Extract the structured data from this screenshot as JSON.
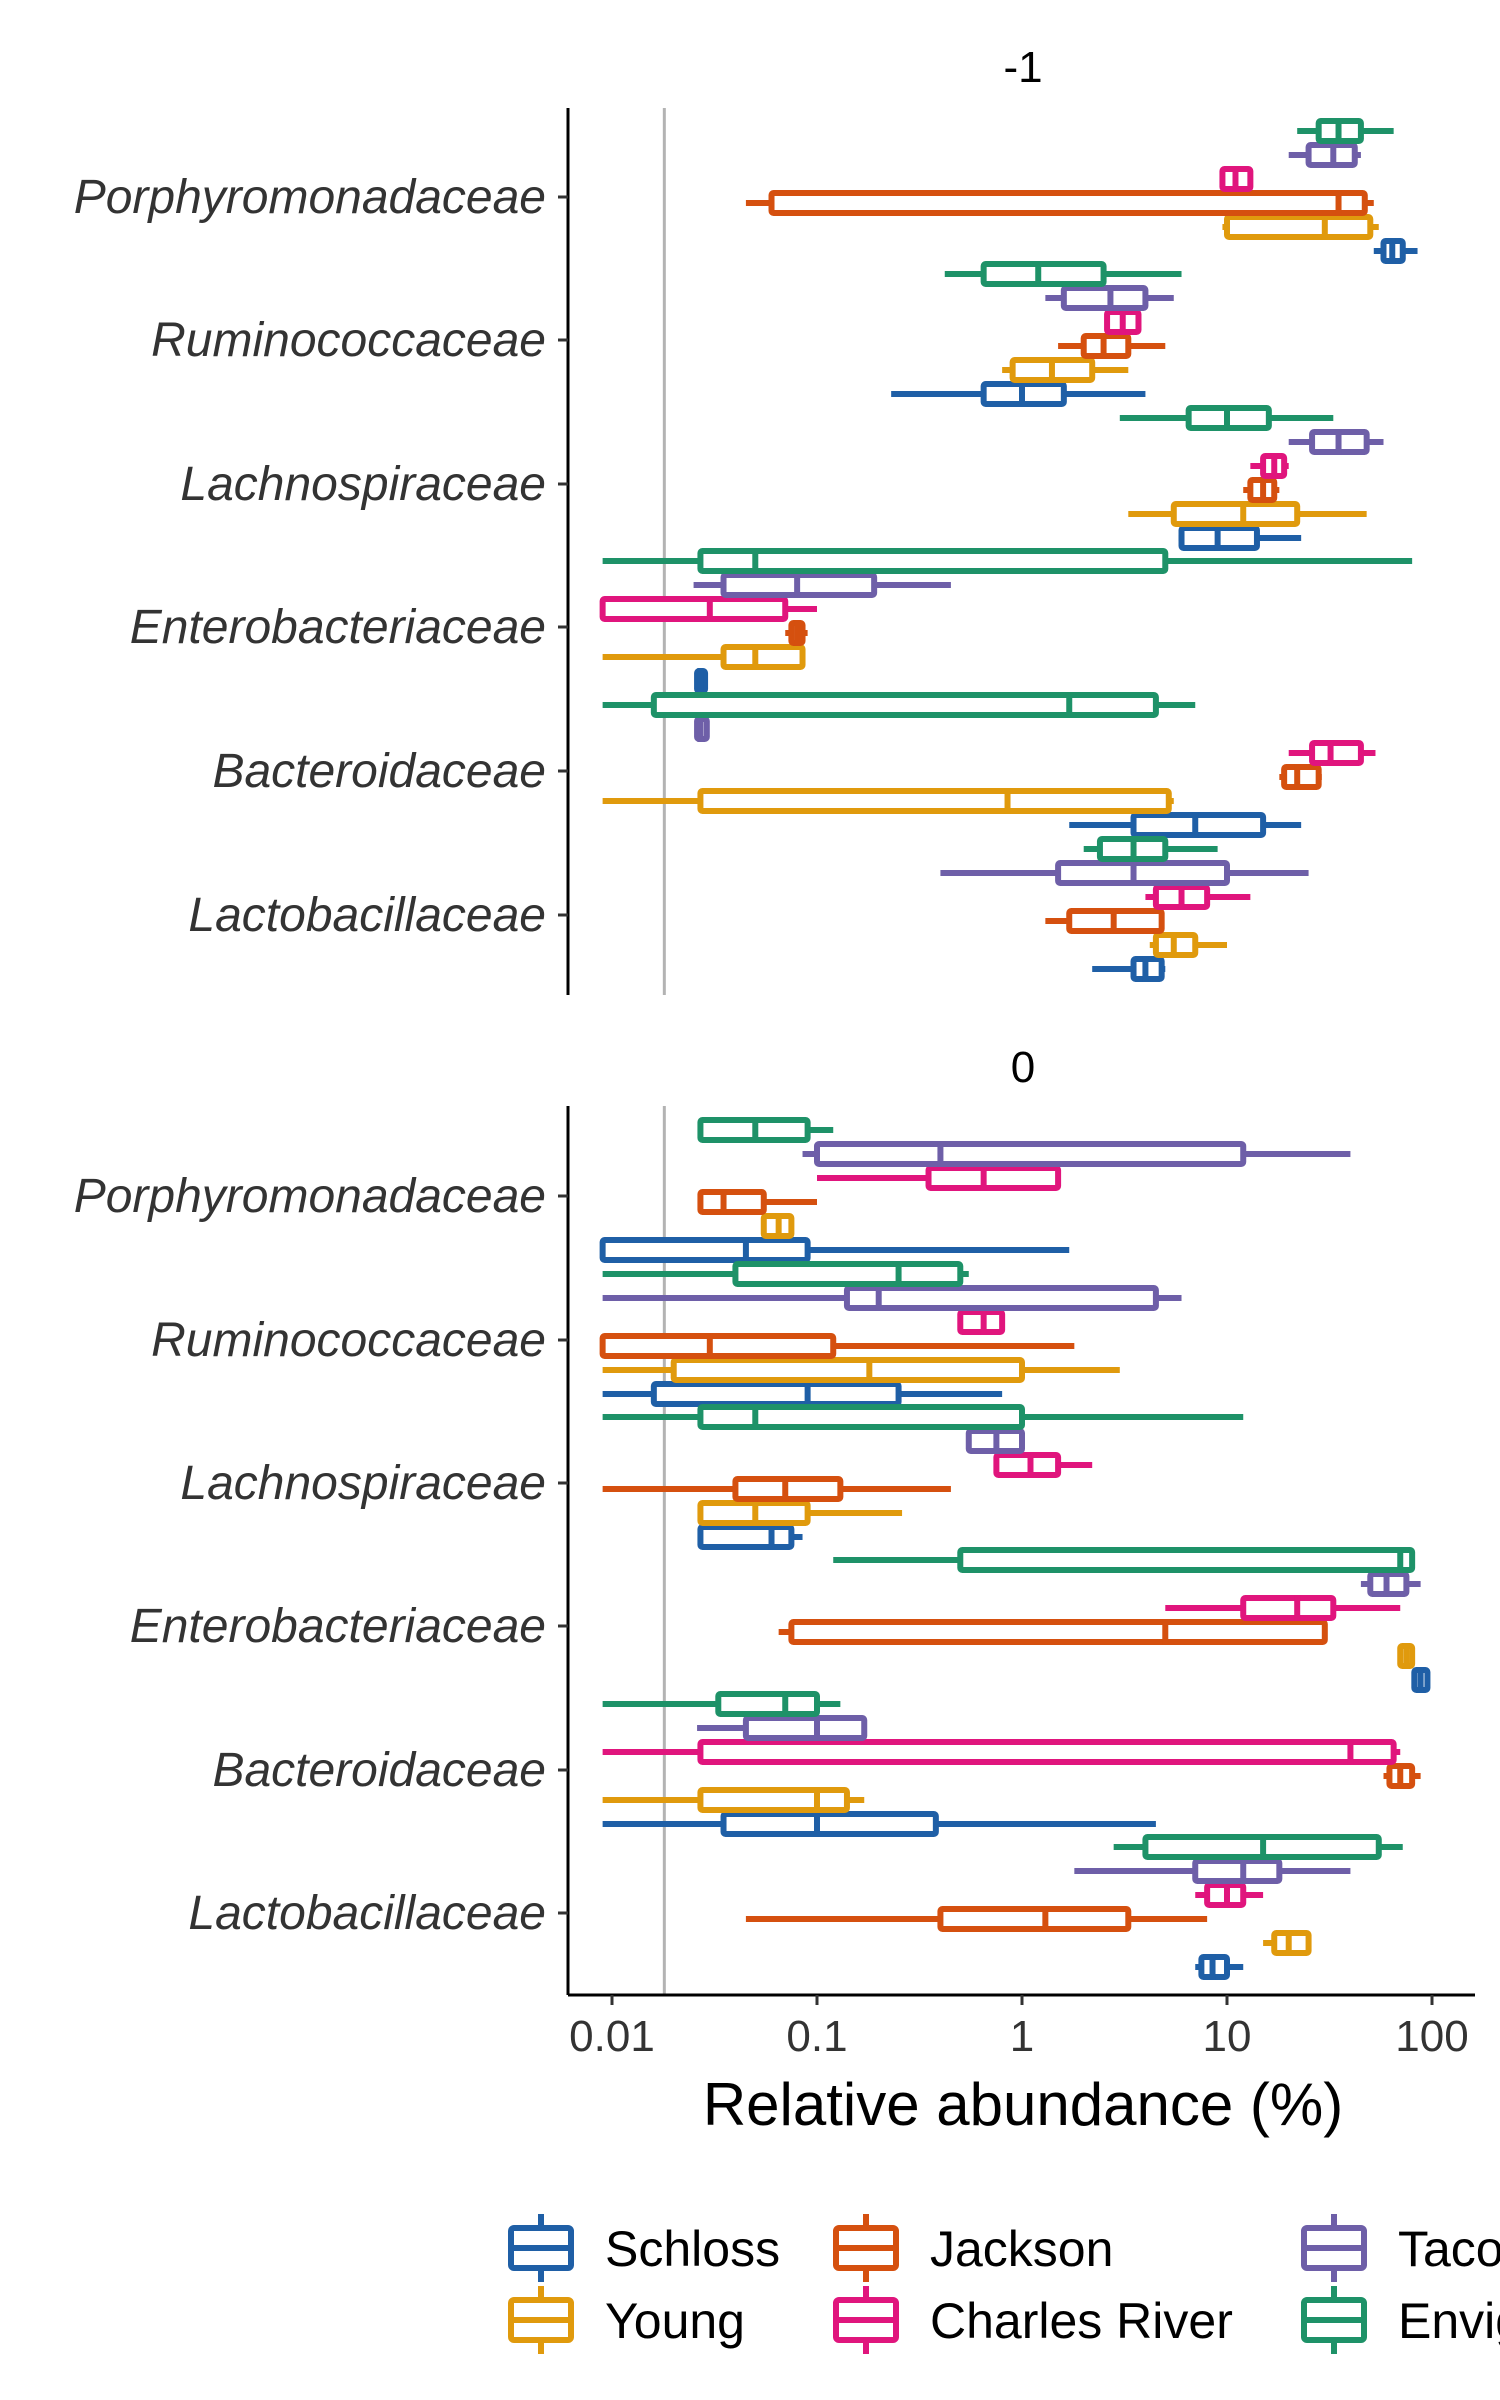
{
  "chart_data": {
    "type": "boxplot",
    "xlabel": "Relative abundance (%)",
    "x_scale": "log10",
    "xlim": [
      0.006,
      150
    ],
    "x_ticks": [
      {
        "value": 0.01,
        "label": "0.01"
      },
      {
        "value": 0.1,
        "label": "0.1"
      },
      {
        "value": 1,
        "label": "1"
      },
      {
        "value": 10,
        "label": "10"
      },
      {
        "value": 100,
        "label": "100"
      }
    ],
    "reference_line": 0.018,
    "categories": [
      "Porphyromonadaceae",
      "Ruminococcaceae",
      "Lachnospiraceae",
      "Enterobacteriaceae",
      "Bacteroidaceae",
      "Lactobacillaceae"
    ],
    "series": [
      {
        "name": "Schloss",
        "color": "#1f5fa6"
      },
      {
        "name": "Young",
        "color": "#e09a0d"
      },
      {
        "name": "Jackson",
        "color": "#d5500f"
      },
      {
        "name": "Charles River",
        "color": "#e0157d"
      },
      {
        "name": "Taconic",
        "color": "#6e5fa8"
      },
      {
        "name": "Envigo",
        "color": "#1e9268"
      }
    ],
    "legend": {
      "position": "bottom",
      "labels": [
        "Schloss",
        "Jackson",
        "Taco",
        "Young",
        "Charles River",
        "Envig"
      ]
    },
    "panels": [
      {
        "title": "-1",
        "boxes": [
          {
            "category": "Porphyromonadaceae",
            "series": "Schloss",
            "whisker_low": 52,
            "q1": 58,
            "median": 64,
            "q3": 72,
            "whisker_high": 85
          },
          {
            "category": "Porphyromonadaceae",
            "series": "Young",
            "whisker_low": 9.5,
            "q1": 10,
            "median": 30,
            "q3": 50,
            "whisker_high": 55
          },
          {
            "category": "Porphyromonadaceae",
            "series": "Jackson",
            "whisker_low": 0.045,
            "q1": 0.06,
            "median": 35,
            "q3": 47,
            "whisker_high": 52
          },
          {
            "category": "Porphyromonadaceae",
            "series": "Charles River",
            "whisker_low": 9.5,
            "q1": 9.5,
            "median": 11,
            "q3": 13,
            "whisker_high": 13
          },
          {
            "category": "Porphyromonadaceae",
            "series": "Taconic",
            "whisker_low": 20,
            "q1": 25,
            "median": 33,
            "q3": 42,
            "whisker_high": 45
          },
          {
            "category": "Porphyromonadaceae",
            "series": "Envigo",
            "whisker_low": 22,
            "q1": 28,
            "median": 35,
            "q3": 45,
            "whisker_high": 65
          },
          {
            "category": "Ruminococcaceae",
            "series": "Schloss",
            "whisker_low": 0.23,
            "q1": 0.65,
            "median": 1.0,
            "q3": 1.6,
            "whisker_high": 4.0
          },
          {
            "category": "Ruminococcaceae",
            "series": "Young",
            "whisker_low": 0.8,
            "q1": 0.9,
            "median": 1.4,
            "q3": 2.2,
            "whisker_high": 3.3
          },
          {
            "category": "Ruminococcaceae",
            "series": "Jackson",
            "whisker_low": 1.5,
            "q1": 2.0,
            "median": 2.5,
            "q3": 3.3,
            "whisker_high": 5.0
          },
          {
            "category": "Ruminococcaceae",
            "series": "Charles River",
            "whisker_low": 2.6,
            "q1": 2.6,
            "median": 3.1,
            "q3": 3.7,
            "whisker_high": 3.7
          },
          {
            "category": "Ruminococcaceae",
            "series": "Taconic",
            "whisker_low": 1.3,
            "q1": 1.6,
            "median": 2.7,
            "q3": 4.0,
            "whisker_high": 5.5
          },
          {
            "category": "Ruminococcaceae",
            "series": "Envigo",
            "whisker_low": 0.42,
            "q1": 0.65,
            "median": 1.2,
            "q3": 2.5,
            "whisker_high": 6.0
          },
          {
            "category": "Lachnospiraceae",
            "series": "Schloss",
            "whisker_low": 5.8,
            "q1": 6.0,
            "median": 9.0,
            "q3": 14,
            "whisker_high": 23
          },
          {
            "category": "Lachnospiraceae",
            "series": "Young",
            "whisker_low": 3.3,
            "q1": 5.5,
            "median": 12,
            "q3": 22,
            "whisker_high": 48
          },
          {
            "category": "Lachnospiraceae",
            "series": "Jackson",
            "whisker_low": 12,
            "q1": 13,
            "median": 15,
            "q3": 17,
            "whisker_high": 18
          },
          {
            "category": "Lachnospiraceae",
            "series": "Charles River",
            "whisker_low": 13,
            "q1": 15,
            "median": 17,
            "q3": 19,
            "whisker_high": 20
          },
          {
            "category": "Lachnospiraceae",
            "series": "Taconic",
            "whisker_low": 20,
            "q1": 26,
            "median": 35,
            "q3": 48,
            "whisker_high": 58
          },
          {
            "category": "Lachnospiraceae",
            "series": "Envigo",
            "whisker_low": 3.0,
            "q1": 6.5,
            "median": 10,
            "q3": 16,
            "whisker_high": 33
          },
          {
            "category": "Enterobacteriaceae",
            "series": "Schloss",
            "whisker_low": 0.026,
            "q1": 0.026,
            "median": 0.027,
            "q3": 0.028,
            "whisker_high": 0.028
          },
          {
            "category": "Enterobacteriaceae",
            "series": "Young",
            "whisker_low": 0.009,
            "q1": 0.035,
            "median": 0.05,
            "q3": 0.085,
            "whisker_high": 0.085
          },
          {
            "category": "Enterobacteriaceae",
            "series": "Jackson",
            "whisker_low": 0.07,
            "q1": 0.075,
            "median": 0.08,
            "q3": 0.085,
            "whisker_high": 0.09
          },
          {
            "category": "Enterobacteriaceae",
            "series": "Charles River",
            "whisker_low": 0.009,
            "q1": 0.009,
            "median": 0.03,
            "q3": 0.07,
            "whisker_high": 0.1
          },
          {
            "category": "Enterobacteriaceae",
            "series": "Taconic",
            "whisker_low": 0.025,
            "q1": 0.035,
            "median": 0.08,
            "q3": 0.19,
            "whisker_high": 0.45
          },
          {
            "category": "Enterobacteriaceae",
            "series": "Envigo",
            "whisker_low": 0.009,
            "q1": 0.027,
            "median": 0.05,
            "q3": 5.0,
            "whisker_high": 80
          },
          {
            "category": "Bacteroidaceae",
            "series": "Schloss",
            "whisker_low": 1.7,
            "q1": 3.5,
            "median": 7.0,
            "q3": 15,
            "whisker_high": 23
          },
          {
            "category": "Bacteroidaceae",
            "series": "Young",
            "whisker_low": 0.009,
            "q1": 0.027,
            "median": 0.85,
            "q3": 5.2,
            "whisker_high": 5.5
          },
          {
            "category": "Bacteroidaceae",
            "series": "Jackson",
            "whisker_low": 18,
            "q1": 19,
            "median": 22,
            "q3": 28,
            "whisker_high": 29
          },
          {
            "category": "Bacteroidaceae",
            "series": "Charles River",
            "whisker_low": 20,
            "q1": 26,
            "median": 32,
            "q3": 45,
            "whisker_high": 53
          },
          {
            "category": "Bacteroidaceae",
            "series": "Taconic",
            "whisker_low": 0.026,
            "q1": 0.026,
            "median": 0.027,
            "q3": 0.029,
            "whisker_high": 0.029
          },
          {
            "category": "Bacteroidaceae",
            "series": "Envigo",
            "whisker_low": 0.009,
            "q1": 0.016,
            "median": 1.7,
            "q3": 4.5,
            "whisker_high": 7.0
          },
          {
            "category": "Lactobacillaceae",
            "series": "Schloss",
            "whisker_low": 2.2,
            "q1": 3.5,
            "median": 4.0,
            "q3": 4.8,
            "whisker_high": 5.0
          },
          {
            "category": "Lactobacillaceae",
            "series": "Young",
            "whisker_low": 4.2,
            "q1": 4.5,
            "median": 5.5,
            "q3": 7.0,
            "whisker_high": 10
          },
          {
            "category": "Lactobacillaceae",
            "series": "Jackson",
            "whisker_low": 1.3,
            "q1": 1.7,
            "median": 2.8,
            "q3": 4.8,
            "whisker_high": 4.8
          },
          {
            "category": "Lactobacillaceae",
            "series": "Charles River",
            "whisker_low": 4.0,
            "q1": 4.5,
            "median": 6.0,
            "q3": 8.0,
            "whisker_high": 13
          },
          {
            "category": "Lactobacillaceae",
            "series": "Taconic",
            "whisker_low": 0.4,
            "q1": 1.5,
            "median": 3.5,
            "q3": 10,
            "whisker_high": 25
          },
          {
            "category": "Lactobacillaceae",
            "series": "Envigo",
            "whisker_low": 2.0,
            "q1": 2.4,
            "median": 3.5,
            "q3": 5.0,
            "whisker_high": 9.0
          }
        ]
      },
      {
        "title": "0",
        "boxes": [
          {
            "category": "Porphyromonadaceae",
            "series": "Schloss",
            "whisker_low": 0.009,
            "q1": 0.009,
            "median": 0.045,
            "q3": 0.09,
            "whisker_high": 1.7
          },
          {
            "category": "Porphyromonadaceae",
            "series": "Young",
            "whisker_low": 0.055,
            "q1": 0.055,
            "median": 0.065,
            "q3": 0.075,
            "whisker_high": 0.075
          },
          {
            "category": "Porphyromonadaceae",
            "series": "Jackson",
            "whisker_low": 0.027,
            "q1": 0.027,
            "median": 0.035,
            "q3": 0.055,
            "whisker_high": 0.1
          },
          {
            "category": "Porphyromonadaceae",
            "series": "Charles River",
            "whisker_low": 0.1,
            "q1": 0.35,
            "median": 0.65,
            "q3": 1.5,
            "whisker_high": 1.5
          },
          {
            "category": "Porphyromonadaceae",
            "series": "Taconic",
            "whisker_low": 0.085,
            "q1": 0.1,
            "median": 0.4,
            "q3": 12,
            "whisker_high": 40
          },
          {
            "category": "Porphyromonadaceae",
            "series": "Envigo",
            "whisker_low": 0.027,
            "q1": 0.027,
            "median": 0.05,
            "q3": 0.09,
            "whisker_high": 0.12
          },
          {
            "category": "Ruminococcaceae",
            "series": "Schloss",
            "whisker_low": 0.009,
            "q1": 0.016,
            "median": 0.09,
            "q3": 0.25,
            "whisker_high": 0.8
          },
          {
            "category": "Ruminococcaceae",
            "series": "Young",
            "whisker_low": 0.009,
            "q1": 0.02,
            "median": 0.18,
            "q3": 1.0,
            "whisker_high": 3.0
          },
          {
            "category": "Ruminococcaceae",
            "series": "Jackson",
            "whisker_low": 0.009,
            "q1": 0.009,
            "median": 0.03,
            "q3": 0.12,
            "whisker_high": 1.8
          },
          {
            "category": "Ruminococcaceae",
            "series": "Charles River",
            "whisker_low": 0.5,
            "q1": 0.5,
            "median": 0.65,
            "q3": 0.8,
            "whisker_high": 0.8
          },
          {
            "category": "Ruminococcaceae",
            "series": "Taconic",
            "whisker_low": 0.009,
            "q1": 0.14,
            "median": 0.2,
            "q3": 4.5,
            "whisker_high": 6.0
          },
          {
            "category": "Ruminococcaceae",
            "series": "Envigo",
            "whisker_low": 0.009,
            "q1": 0.04,
            "median": 0.25,
            "q3": 0.5,
            "whisker_high": 0.55
          },
          {
            "category": "Lachnospiraceae",
            "series": "Schloss",
            "whisker_low": 0.027,
            "q1": 0.027,
            "median": 0.06,
            "q3": 0.075,
            "whisker_high": 0.085
          },
          {
            "category": "Lachnospiraceae",
            "series": "Young",
            "whisker_low": 0.027,
            "q1": 0.027,
            "median": 0.05,
            "q3": 0.09,
            "whisker_high": 0.26
          },
          {
            "category": "Lachnospiraceae",
            "series": "Jackson",
            "whisker_low": 0.009,
            "q1": 0.04,
            "median": 0.07,
            "q3": 0.13,
            "whisker_high": 0.45
          },
          {
            "category": "Lachnospiraceae",
            "series": "Charles River",
            "whisker_low": 0.75,
            "q1": 0.75,
            "median": 1.1,
            "q3": 1.5,
            "whisker_high": 2.2
          },
          {
            "category": "Lachnospiraceae",
            "series": "Taconic",
            "whisker_low": 0.55,
            "q1": 0.55,
            "median": 0.75,
            "q3": 1.0,
            "whisker_high": 1.0
          },
          {
            "category": "Lachnospiraceae",
            "series": "Envigo",
            "whisker_low": 0.009,
            "q1": 0.027,
            "median": 0.05,
            "q3": 1.0,
            "whisker_high": 12
          },
          {
            "category": "Enterobacteriaceae",
            "series": "Schloss",
            "whisker_low": 80,
            "q1": 82,
            "median": 88,
            "q3": 95,
            "whisker_high": 97
          },
          {
            "category": "Enterobacteriaceae",
            "series": "Young",
            "whisker_low": 70,
            "q1": 70,
            "median": 75,
            "q3": 80,
            "whisker_high": 80
          },
          {
            "category": "Enterobacteriaceae",
            "series": "Jackson",
            "whisker_low": 0.065,
            "q1": 0.075,
            "median": 5.0,
            "q3": 30,
            "whisker_high": 30
          },
          {
            "category": "Enterobacteriaceae",
            "series": "Charles River",
            "whisker_low": 5.0,
            "q1": 12,
            "median": 22,
            "q3": 33,
            "whisker_high": 70
          },
          {
            "category": "Enterobacteriaceae",
            "series": "Taconic",
            "whisker_low": 45,
            "q1": 50,
            "median": 60,
            "q3": 75,
            "whisker_high": 88
          },
          {
            "category": "Enterobacteriaceae",
            "series": "Envigo",
            "whisker_low": 0.12,
            "q1": 0.5,
            "median": 70,
            "q3": 80,
            "whisker_high": 82
          },
          {
            "category": "Bacteroidaceae",
            "series": "Schloss",
            "whisker_low": 0.009,
            "q1": 0.035,
            "median": 0.1,
            "q3": 0.38,
            "whisker_high": 4.5
          },
          {
            "category": "Bacteroidaceae",
            "series": "Young",
            "whisker_low": 0.009,
            "q1": 0.027,
            "median": 0.1,
            "q3": 0.14,
            "whisker_high": 0.17
          },
          {
            "category": "Bacteroidaceae",
            "series": "Jackson",
            "whisker_low": 58,
            "q1": 62,
            "median": 70,
            "q3": 80,
            "whisker_high": 88
          },
          {
            "category": "Bacteroidaceae",
            "series": "Charles River",
            "whisker_low": 0.009,
            "q1": 0.027,
            "median": 40,
            "q3": 65,
            "whisker_high": 70
          },
          {
            "category": "Bacteroidaceae",
            "series": "Taconic",
            "whisker_low": 0.026,
            "q1": 0.045,
            "median": 0.1,
            "q3": 0.17,
            "whisker_high": 0.17
          },
          {
            "category": "Bacteroidaceae",
            "series": "Envigo",
            "whisker_low": 0.009,
            "q1": 0.033,
            "median": 0.07,
            "q3": 0.1,
            "whisker_high": 0.13
          },
          {
            "category": "Lactobacillaceae",
            "series": "Schloss",
            "whisker_low": 7.0,
            "q1": 7.5,
            "median": 8.5,
            "q3": 10,
            "whisker_high": 12
          },
          {
            "category": "Lactobacillaceae",
            "series": "Young",
            "whisker_low": 15,
            "q1": 17,
            "median": 20,
            "q3": 25,
            "whisker_high": 25
          },
          {
            "category": "Lactobacillaceae",
            "series": "Jackson",
            "whisker_low": 0.045,
            "q1": 0.4,
            "median": 1.3,
            "q3": 3.3,
            "whisker_high": 8.0
          },
          {
            "category": "Lactobacillaceae",
            "series": "Charles River",
            "whisker_low": 7.0,
            "q1": 8.0,
            "median": 10,
            "q3": 12,
            "whisker_high": 15
          },
          {
            "category": "Lactobacillaceae",
            "series": "Taconic",
            "whisker_low": 1.8,
            "q1": 7.0,
            "median": 12,
            "q3": 18,
            "whisker_high": 40
          },
          {
            "category": "Lactobacillaceae",
            "series": "Envigo",
            "whisker_low": 2.8,
            "q1": 4.0,
            "median": 15,
            "q3": 55,
            "whisker_high": 72
          }
        ]
      }
    ]
  }
}
